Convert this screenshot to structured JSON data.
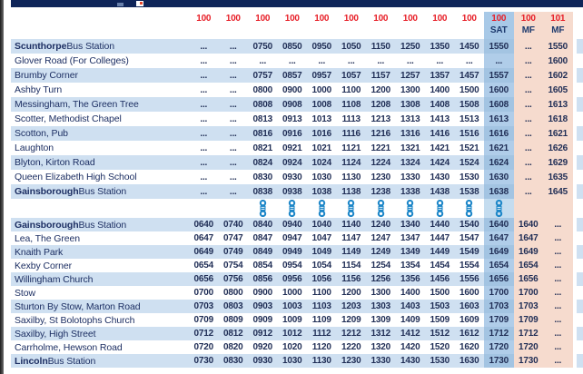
{
  "window": {
    "titlebar_color": "#0f2559",
    "title_text_visible": false
  },
  "timetable": {
    "columns": [
      {
        "route": "100",
        "day": ""
      },
      {
        "route": "100",
        "day": ""
      },
      {
        "route": "100",
        "day": ""
      },
      {
        "route": "100",
        "day": ""
      },
      {
        "route": "100",
        "day": ""
      },
      {
        "route": "100",
        "day": ""
      },
      {
        "route": "100",
        "day": ""
      },
      {
        "route": "100",
        "day": ""
      },
      {
        "route": "100",
        "day": ""
      },
      {
        "route": "100",
        "day": ""
      },
      {
        "route": "100",
        "day": "SAT",
        "band": "sat"
      },
      {
        "route": "100",
        "day": "MF",
        "band": "mf"
      },
      {
        "route": "101",
        "day": "MF",
        "band": "mf"
      }
    ],
    "section1": [
      {
        "stop_bold": "Scunthorpe",
        "stop_rest": " Bus Station",
        "times": [
          "...",
          "...",
          "0750",
          "0850",
          "0950",
          "1050",
          "1150",
          "1250",
          "1350",
          "1450",
          "1550",
          "...",
          "1550"
        ]
      },
      {
        "stop_bold": "",
        "stop_rest": "Glover Road (For Colleges)",
        "times": [
          "...",
          "...",
          "...",
          "...",
          "...",
          "...",
          "...",
          "...",
          "...",
          "...",
          "...",
          "...",
          "1600"
        ]
      },
      {
        "stop_bold": "",
        "stop_rest": "Brumby Corner",
        "times": [
          "...",
          "...",
          "0757",
          "0857",
          "0957",
          "1057",
          "1157",
          "1257",
          "1357",
          "1457",
          "1557",
          "...",
          "1602"
        ]
      },
      {
        "stop_bold": "",
        "stop_rest": "Ashby Turn",
        "times": [
          "...",
          "...",
          "0800",
          "0900",
          "1000",
          "1100",
          "1200",
          "1300",
          "1400",
          "1500",
          "1600",
          "...",
          "1605"
        ]
      },
      {
        "stop_bold": "",
        "stop_rest": "Messingham, The Green Tree",
        "times": [
          "...",
          "...",
          "0808",
          "0908",
          "1008",
          "1108",
          "1208",
          "1308",
          "1408",
          "1508",
          "1608",
          "...",
          "1613"
        ]
      },
      {
        "stop_bold": "",
        "stop_rest": "Scotter, Methodist Chapel",
        "times": [
          "...",
          "...",
          "0813",
          "0913",
          "1013",
          "1113",
          "1213",
          "1313",
          "1413",
          "1513",
          "1613",
          "...",
          "1618"
        ]
      },
      {
        "stop_bold": "",
        "stop_rest": "Scotton, Pub",
        "times": [
          "...",
          "...",
          "0816",
          "0916",
          "1016",
          "1116",
          "1216",
          "1316",
          "1416",
          "1516",
          "1616",
          "...",
          "1621"
        ]
      },
      {
        "stop_bold": "",
        "stop_rest": "Laughton",
        "times": [
          "...",
          "...",
          "0821",
          "0921",
          "1021",
          "1121",
          "1221",
          "1321",
          "1421",
          "1521",
          "1621",
          "...",
          "1626"
        ]
      },
      {
        "stop_bold": "",
        "stop_rest": "Blyton, Kirton Road",
        "times": [
          "...",
          "...",
          "0824",
          "0924",
          "1024",
          "1124",
          "1224",
          "1324",
          "1424",
          "1524",
          "1624",
          "...",
          "1629"
        ]
      },
      {
        "stop_bold": "",
        "stop_rest": "Queen Elizabeth High School",
        "times": [
          "...",
          "...",
          "0830",
          "0930",
          "1030",
          "1130",
          "1230",
          "1330",
          "1430",
          "1530",
          "1630",
          "...",
          "1635"
        ]
      },
      {
        "stop_bold": "Gainsborough",
        "stop_rest": " Bus Station",
        "times": [
          "...",
          "...",
          "0838",
          "0938",
          "1038",
          "1138",
          "1238",
          "1338",
          "1438",
          "1538",
          "1638",
          "...",
          "1645"
        ]
      }
    ],
    "link_row": {
      "icon": "interchange-link-icon",
      "icon_color": "#1c86c8",
      "columns_with_icon": [
        2,
        3,
        4,
        5,
        6,
        7,
        8,
        9,
        10
      ]
    },
    "section2": [
      {
        "stop_bold": "Gainsborough",
        "stop_rest": " Bus Station",
        "times": [
          "0640",
          "0740",
          "0840",
          "0940",
          "1040",
          "1140",
          "1240",
          "1340",
          "1440",
          "1540",
          "1640",
          "1640",
          "..."
        ]
      },
      {
        "stop_bold": "",
        "stop_rest": "Lea, The Green",
        "times": [
          "0647",
          "0747",
          "0847",
          "0947",
          "1047",
          "1147",
          "1247",
          "1347",
          "1447",
          "1547",
          "1647",
          "1647",
          "..."
        ]
      },
      {
        "stop_bold": "",
        "stop_rest": "Knaith Park",
        "times": [
          "0649",
          "0749",
          "0849",
          "0949",
          "1049",
          "1149",
          "1249",
          "1349",
          "1449",
          "1549",
          "1649",
          "1649",
          "..."
        ]
      },
      {
        "stop_bold": "",
        "stop_rest": "Kexby Corner",
        "times": [
          "0654",
          "0754",
          "0854",
          "0954",
          "1054",
          "1154",
          "1254",
          "1354",
          "1454",
          "1554",
          "1654",
          "1654",
          "..."
        ]
      },
      {
        "stop_bold": "",
        "stop_rest": "Willingham Church",
        "times": [
          "0656",
          "0756",
          "0856",
          "0956",
          "1056",
          "1156",
          "1256",
          "1356",
          "1456",
          "1556",
          "1656",
          "1656",
          "..."
        ]
      },
      {
        "stop_bold": "",
        "stop_rest": "Stow",
        "times": [
          "0700",
          "0800",
          "0900",
          "1000",
          "1100",
          "1200",
          "1300",
          "1400",
          "1500",
          "1600",
          "1700",
          "1700",
          "..."
        ]
      },
      {
        "stop_bold": "",
        "stop_rest": "Sturton By Stow, Marton Road",
        "times": [
          "0703",
          "0803",
          "0903",
          "1003",
          "1103",
          "1203",
          "1303",
          "1403",
          "1503",
          "1603",
          "1703",
          "1703",
          "..."
        ]
      },
      {
        "stop_bold": "",
        "stop_rest": "Saxilby, St Bolotophs Church",
        "times": [
          "0709",
          "0809",
          "0909",
          "1009",
          "1109",
          "1209",
          "1309",
          "1409",
          "1509",
          "1609",
          "1709",
          "1709",
          "..."
        ]
      },
      {
        "stop_bold": "",
        "stop_rest": "Saxilby, High Street",
        "times": [
          "0712",
          "0812",
          "0912",
          "1012",
          "1112",
          "1212",
          "1312",
          "1412",
          "1512",
          "1612",
          "1712",
          "1712",
          "..."
        ]
      },
      {
        "stop_bold": "",
        "stop_rest": "Carrholme, Hewson Road",
        "times": [
          "0720",
          "0820",
          "0920",
          "1020",
          "1120",
          "1220",
          "1320",
          "1420",
          "1520",
          "1620",
          "1720",
          "1720",
          "..."
        ]
      },
      {
        "stop_bold": "Lincoln",
        "stop_rest": " Bus Station",
        "times": [
          "0730",
          "0830",
          "0930",
          "1030",
          "1130",
          "1230",
          "1330",
          "1430",
          "1530",
          "1630",
          "1730",
          "1730",
          "..."
        ]
      }
    ],
    "colors": {
      "row_stripe": "#cfe0f1",
      "sat_band": "#a8c9e7",
      "mf_band": "#f6dbce",
      "route_red": "#e71e27",
      "navy_text": "#1d2f63"
    }
  }
}
